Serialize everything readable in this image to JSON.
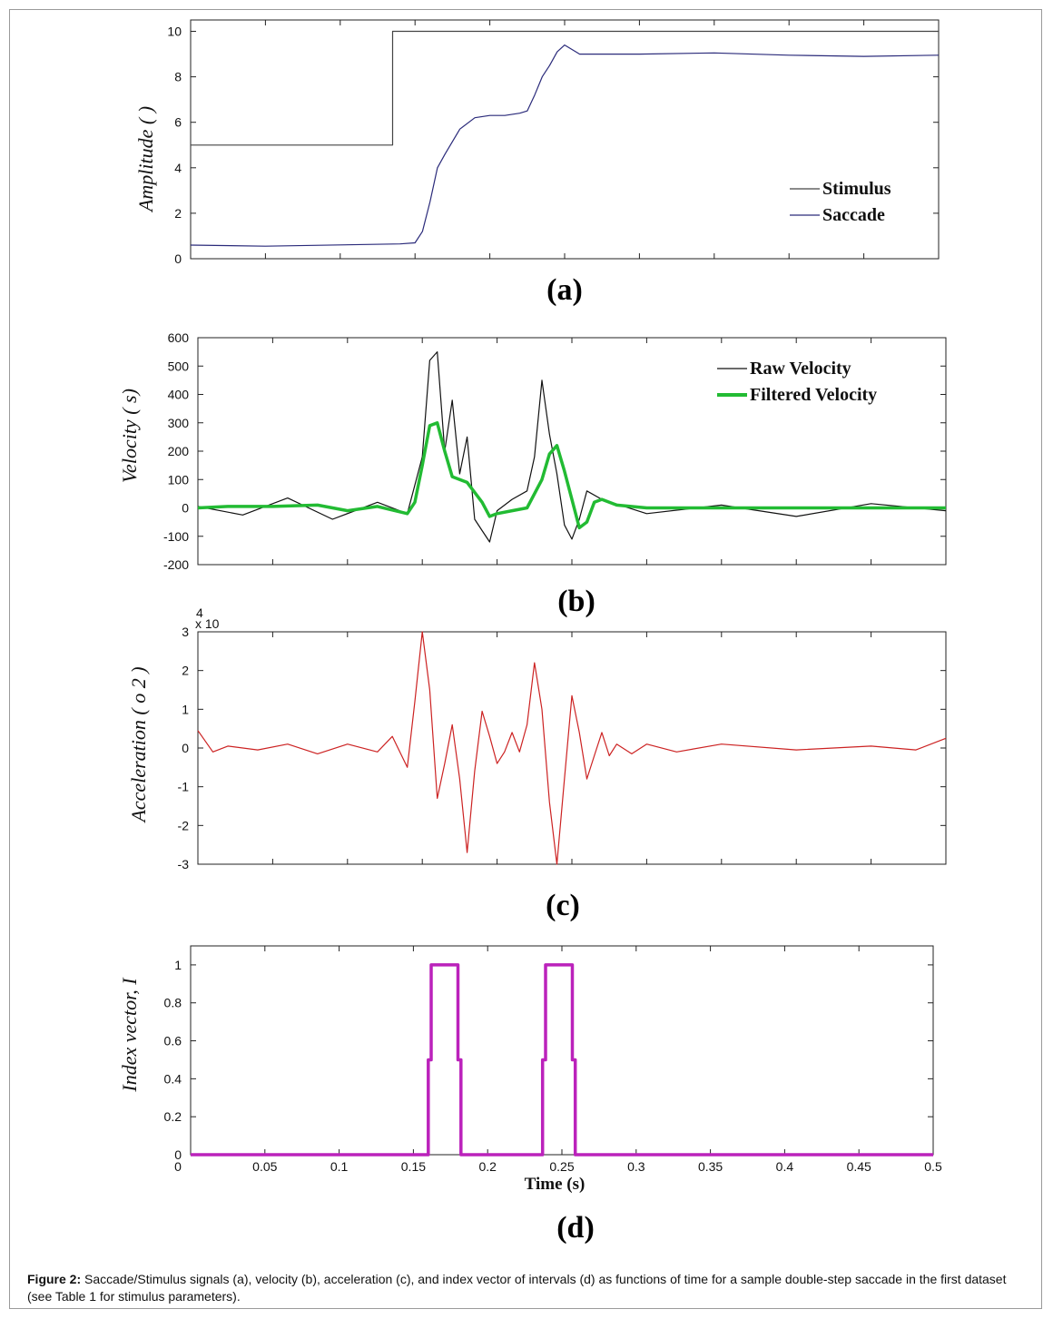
{
  "caption": {
    "label": "Figure 2:",
    "text": " Saccade/Stimulus signals (a), velocity (b), acceleration (c), and index vector of intervals (d) as functions of time for a sample double-step saccade in the first dataset (see Table 1 for stimulus parameters)."
  },
  "chart_data": [
    {
      "panel": "a",
      "type": "line",
      "panel_label": "(a)",
      "ylabel": "Amplitude (  )",
      "ylim": [
        0,
        10.5
      ],
      "yticks": [
        0,
        2,
        4,
        6,
        8,
        10
      ],
      "xlim": [
        0,
        0.5
      ],
      "legend_position": "bottom-right",
      "colors": {
        "Stimulus": "#444444",
        "Saccade": "#2a2a7a"
      },
      "series": [
        {
          "name": "Stimulus",
          "x": [
            0,
            0.135,
            0.135,
            0.5
          ],
          "y": [
            5,
            5,
            10,
            10
          ]
        },
        {
          "name": "Saccade",
          "x": [
            0,
            0.05,
            0.14,
            0.15,
            0.155,
            0.16,
            0.165,
            0.17,
            0.18,
            0.19,
            0.2,
            0.21,
            0.22,
            0.225,
            0.23,
            0.235,
            0.24,
            0.245,
            0.25,
            0.26,
            0.3,
            0.35,
            0.4,
            0.45,
            0.5
          ],
          "y": [
            0.6,
            0.55,
            0.65,
            0.7,
            1.2,
            2.5,
            4.0,
            4.6,
            5.7,
            6.2,
            6.3,
            6.3,
            6.4,
            6.5,
            7.2,
            8.0,
            8.5,
            9.1,
            9.4,
            9.0,
            9.0,
            9.05,
            8.95,
            8.9,
            8.95
          ]
        }
      ]
    },
    {
      "panel": "b",
      "type": "line",
      "panel_label": "(b)",
      "ylabel": "Velocity (  s)",
      "ylim": [
        -200,
        600
      ],
      "yticks": [
        -200,
        -100,
        0,
        100,
        200,
        300,
        400,
        500,
        600
      ],
      "xlim": [
        0,
        0.5
      ],
      "legend_position": "top-right",
      "colors": {
        "Raw Velocity": "#111111",
        "Filtered Velocity": "#22bb33"
      },
      "series": [
        {
          "name": "Raw Velocity",
          "x": [
            0,
            0.03,
            0.06,
            0.09,
            0.12,
            0.14,
            0.15,
            0.155,
            0.16,
            0.165,
            0.17,
            0.175,
            0.18,
            0.185,
            0.19,
            0.195,
            0.2,
            0.21,
            0.22,
            0.225,
            0.23,
            0.235,
            0.24,
            0.245,
            0.25,
            0.255,
            0.26,
            0.27,
            0.3,
            0.35,
            0.4,
            0.45,
            0.5
          ],
          "y": [
            5,
            -25,
            35,
            -40,
            20,
            -20,
            180,
            520,
            550,
            200,
            380,
            120,
            250,
            -40,
            -80,
            -120,
            -10,
            30,
            60,
            180,
            450,
            260,
            120,
            -60,
            -110,
            -40,
            60,
            30,
            -20,
            10,
            -30,
            15,
            -10
          ]
        },
        {
          "name": "Filtered Velocity",
          "x": [
            0,
            0.02,
            0.05,
            0.08,
            0.1,
            0.12,
            0.14,
            0.145,
            0.15,
            0.155,
            0.16,
            0.165,
            0.17,
            0.18,
            0.19,
            0.195,
            0.2,
            0.21,
            0.22,
            0.23,
            0.235,
            0.24,
            0.245,
            0.25,
            0.255,
            0.26,
            0.265,
            0.27,
            0.28,
            0.3,
            0.35,
            0.4,
            0.45,
            0.5
          ],
          "y": [
            0,
            5,
            5,
            10,
            -10,
            5,
            -20,
            20,
            150,
            290,
            300,
            200,
            110,
            90,
            20,
            -30,
            -20,
            -10,
            0,
            100,
            190,
            220,
            130,
            30,
            -70,
            -50,
            20,
            30,
            10,
            0,
            0,
            0,
            0,
            0
          ]
        }
      ]
    },
    {
      "panel": "c",
      "type": "line",
      "panel_label": "(c)",
      "ylabel": "Acceleration (  o 2  )",
      "exponent_label": "x 10",
      "exponent_superscript": "4",
      "ylim": [
        -3,
        3
      ],
      "yticks": [
        -3,
        -2,
        -1,
        0,
        1,
        2,
        3
      ],
      "xlim": [
        0,
        0.5
      ],
      "colors": {
        "Acceleration": "#cc2222"
      },
      "series": [
        {
          "name": "",
          "x": [
            0,
            0.01,
            0.02,
            0.04,
            0.06,
            0.08,
            0.1,
            0.12,
            0.13,
            0.14,
            0.145,
            0.15,
            0.155,
            0.16,
            0.165,
            0.17,
            0.175,
            0.18,
            0.185,
            0.19,
            0.195,
            0.2,
            0.205,
            0.21,
            0.215,
            0.22,
            0.225,
            0.23,
            0.235,
            0.24,
            0.245,
            0.25,
            0.255,
            0.26,
            0.265,
            0.27,
            0.275,
            0.28,
            0.29,
            0.3,
            0.32,
            0.35,
            0.4,
            0.45,
            0.48,
            0.5
          ],
          "y": [
            0.45,
            -0.1,
            0.05,
            -0.05,
            0.1,
            -0.15,
            0.1,
            -0.1,
            0.3,
            -0.5,
            1.2,
            3.0,
            1.5,
            -1.3,
            -0.4,
            0.6,
            -0.8,
            -2.7,
            -0.6,
            0.95,
            0.3,
            -0.4,
            -0.1,
            0.4,
            -0.1,
            0.6,
            2.2,
            1.0,
            -1.4,
            -3.0,
            -0.8,
            1.35,
            0.4,
            -0.8,
            -0.2,
            0.4,
            -0.2,
            0.1,
            -0.15,
            0.1,
            -0.1,
            0.1,
            -0.05,
            0.05,
            -0.05,
            0.25
          ]
        }
      ]
    },
    {
      "panel": "d",
      "type": "line",
      "panel_label": "(d)",
      "ylabel": "Index vector, I",
      "xlabel": "Time (s)",
      "ylim": [
        0,
        1.1
      ],
      "yticks": [
        0,
        0.2,
        0.4,
        0.6,
        0.8,
        1
      ],
      "ytick_labels": [
        "0",
        "0.2",
        "0.4",
        "0.6",
        "0.8",
        "1"
      ],
      "xlim": [
        0,
        0.5
      ],
      "xticks": [
        0,
        0.05,
        0.1,
        0.15,
        0.2,
        0.25,
        0.3,
        0.35,
        0.4,
        0.45,
        0.5
      ],
      "xtick_labels": [
        "0",
        "0.05",
        "0.1",
        "0.15",
        "0.2",
        "0.25",
        "0.3",
        "0.35",
        "0.4",
        "0.45",
        "0.5"
      ],
      "colors": {
        "Index": "#bb22bb"
      },
      "series": [
        {
          "name": "",
          "x": [
            0,
            0.16,
            0.16,
            0.162,
            0.162,
            0.18,
            0.18,
            0.182,
            0.182,
            0.237,
            0.237,
            0.239,
            0.239,
            0.257,
            0.257,
            0.259,
            0.259,
            0.5
          ],
          "y": [
            0,
            0,
            0.5,
            0.5,
            1,
            1,
            0.5,
            0.5,
            0,
            0,
            0.5,
            0.5,
            1,
            1,
            0.5,
            0.5,
            0,
            0
          ]
        }
      ]
    }
  ]
}
